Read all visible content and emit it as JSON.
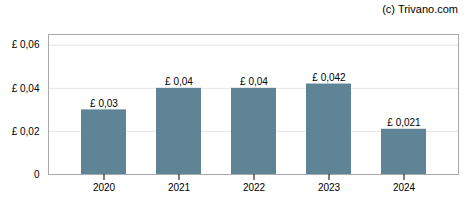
{
  "chart_data": {
    "type": "bar",
    "annotation": "(c) Trivano.com",
    "categories": [
      "2020",
      "2021",
      "2022",
      "2023",
      "2024"
    ],
    "values": [
      0.03,
      0.04,
      0.04,
      0.042,
      0.021
    ],
    "value_labels": [
      "£ 0,03",
      "£ 0,04",
      "£ 0,04",
      "£ 0,042",
      "£ 0,021"
    ],
    "color": "#5f8496",
    "ylim": [
      0,
      0.065
    ],
    "yticks": [
      0,
      {
        "value": 0.02,
        "label": "£ 0,02"
      },
      {
        "value": 0.04,
        "label": "£ 0,04"
      },
      {
        "value": 0.06,
        "label": "£ 0,06"
      }
    ],
    "grid": true,
    "data_labels": true
  }
}
